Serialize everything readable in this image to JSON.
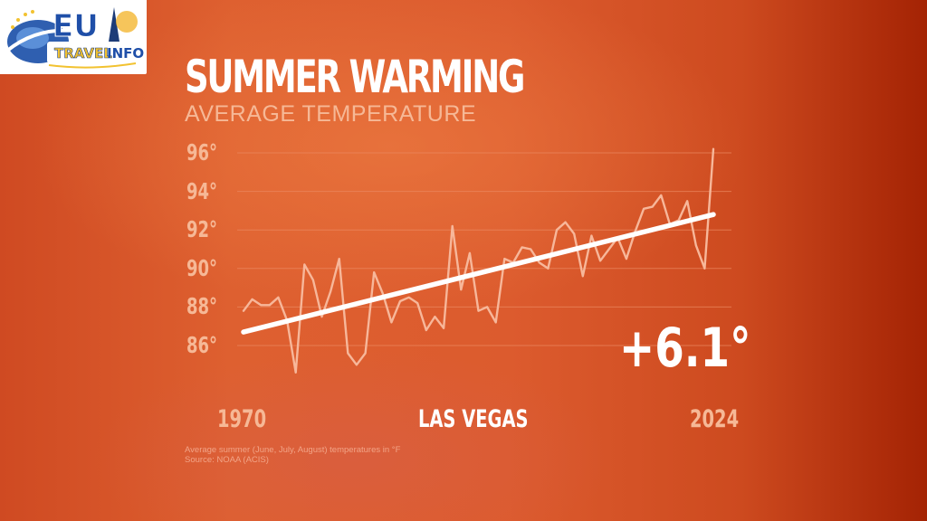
{
  "logo": {
    "line1": "EU",
    "line2_a": "TRAVEL",
    "line2_b": "INFO"
  },
  "header": {
    "title": "SUMMER WARMING",
    "subtitle": "AVERAGE TEMPERATURE"
  },
  "axis": {
    "y_ticks": [
      "96°",
      "94°",
      "92°",
      "90°",
      "88°",
      "86°"
    ],
    "x_start": "1970",
    "x_end": "2024"
  },
  "location": "LAS VEGAS",
  "change_label": "+6.1°",
  "footnote": {
    "line1": "Average summer (June, July, August) temperatures in °F",
    "line2": "Source: NOAA (ACIS)"
  },
  "colors": {
    "data_line": "#f7b79a",
    "trend_line": "#ffffff",
    "grid": "#ec8a62",
    "title": "#ffffff",
    "muted_text": "#f6b896"
  },
  "chart_data": {
    "type": "line",
    "title": "SUMMER WARMING",
    "subtitle": "AVERAGE TEMPERATURE",
    "xlabel": "",
    "ylabel": "Average summer temperature (°F)",
    "location": "LAS VEGAS",
    "annotation": "+6.1°",
    "x": [
      1970,
      1971,
      1972,
      1973,
      1974,
      1975,
      1976,
      1977,
      1978,
      1979,
      1980,
      1981,
      1982,
      1983,
      1984,
      1985,
      1986,
      1987,
      1988,
      1989,
      1990,
      1991,
      1992,
      1993,
      1994,
      1995,
      1996,
      1997,
      1998,
      1999,
      2000,
      2001,
      2002,
      2003,
      2004,
      2005,
      2006,
      2007,
      2008,
      2009,
      2010,
      2011,
      2012,
      2013,
      2014,
      2015,
      2016,
      2017,
      2018,
      2019,
      2020,
      2021,
      2022,
      2023,
      2024
    ],
    "series": [
      {
        "name": "Average summer temperature",
        "values": [
          87.8,
          88.4,
          88.1,
          88.1,
          88.5,
          87.3,
          84.6,
          90.2,
          89.4,
          87.5,
          88.8,
          90.5,
          85.6,
          85.0,
          85.6,
          89.8,
          88.7,
          87.2,
          88.3,
          88.5,
          88.2,
          86.8,
          87.5,
          86.9,
          92.2,
          88.9,
          90.8,
          87.8,
          88.0,
          87.2,
          90.5,
          90.3,
          91.1,
          91.0,
          90.3,
          90.0,
          92.0,
          92.4,
          91.8,
          89.6,
          91.7,
          90.4,
          91.0,
          91.6,
          90.5,
          91.9,
          93.1,
          93.2,
          93.8,
          92.3,
          92.5,
          93.5,
          91.2,
          90.0,
          96.2
        ]
      },
      {
        "name": "Trend",
        "values_endpoints": [
          86.7,
          92.8
        ]
      }
    ],
    "ylim": [
      85,
      97
    ],
    "y_ticks": [
      86,
      88,
      90,
      92,
      94,
      96
    ],
    "x_ticks": [
      "1970",
      "2024"
    ],
    "grid": true,
    "legend": "none",
    "footnote": "Average summer (June, July, August) temperatures in °F. Source: NOAA (ACIS)"
  }
}
